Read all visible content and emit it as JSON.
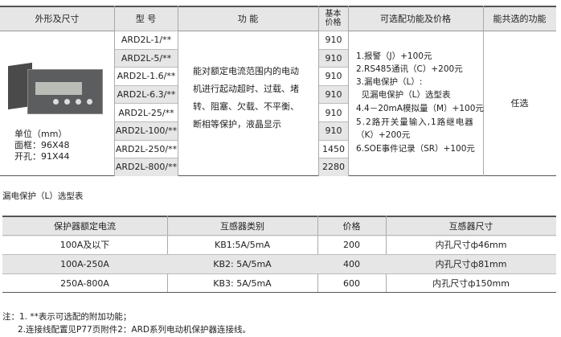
{
  "main_table": {
    "headers": [
      "外形及尺寸",
      "型 号",
      "功 能",
      "基本\n价格",
      "可选配功能及价格",
      "能共选的功能"
    ],
    "dimensions": [
      "单位（mm）",
      "面框：96X48",
      "开孔：91X44"
    ],
    "models": [
      "ARD2L-1/**",
      "ARD2L-5/**",
      "ARD2L-1.6/**",
      "ARD2L-6.3/**",
      "ARD2L-25/**",
      "ARD2L-100/**",
      "ARD2L-250/**",
      "ARD2L-800/**"
    ],
    "prices": [
      "910",
      "910",
      "910",
      "910",
      "910",
      "910",
      "1450",
      "2280"
    ],
    "function_lines": [
      "能对额定电流范围内的电动",
      "机进行起动超时、过载、堵",
      "转、阻塞、欠载、不平衡、",
      "断相等保护，液晶显示"
    ],
    "options": [
      "1.报警（J）+100元",
      "2.RS485通讯（C）+200元",
      "3.漏电保护（L）:",
      "  见漏电保护（L）选型表",
      "4.4－20mA模拟量（M）+100元",
      "5.2路开关量输入,1路继电器",
      "（K）+200元",
      "6.SOE事件记录（SR）+100元"
    ],
    "combinable": "任选"
  },
  "leak_table": {
    "title": "漏电保护（L）选型表",
    "headers": [
      "保护器额定电流",
      "互感器类别",
      "价格",
      "互感器尺寸"
    ],
    "rows": [
      [
        "100A及以下",
        "KB1:5A/5mA",
        "200",
        "内孔尺寸ф46mm"
      ],
      [
        "100A-250A",
        "KB2: 5A/5mA",
        "400",
        "内孔尺寸ф81mm"
      ],
      [
        "250A-800A",
        "KB3: 5A/5mA",
        "600",
        "内孔尺寸ф150mm"
      ]
    ]
  },
  "notes": [
    "注：1. **表示可选配的附加功能；",
    "2.连接线配置见P77页附件2：ARD系列电动机保护器连接线。"
  ]
}
